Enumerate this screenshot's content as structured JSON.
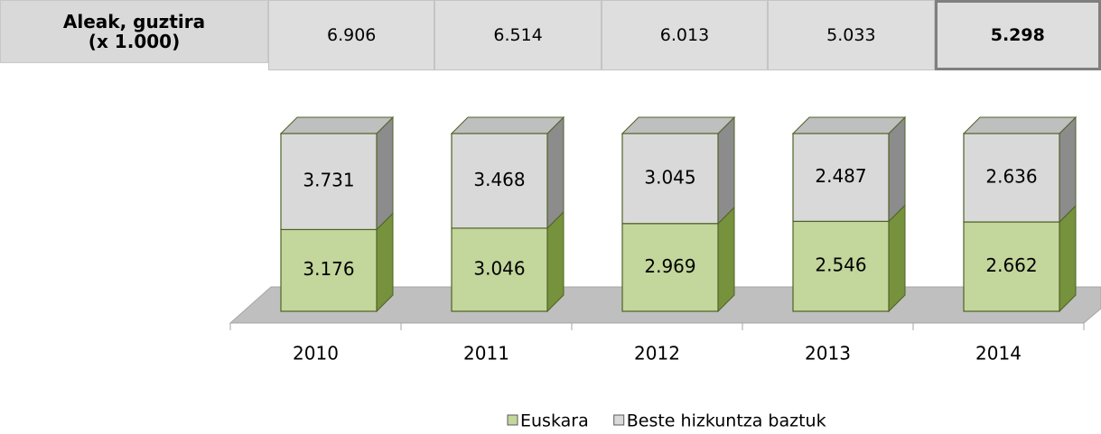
{
  "table": {
    "header": [
      "Aleak, guztira",
      "(x 1.000)"
    ],
    "values": [
      6906,
      6514,
      6013,
      5033,
      5298
    ],
    "value_labels": [
      "6.906",
      "6.514",
      "6.013",
      "5.033",
      "5.298"
    ]
  },
  "chart_data": {
    "type": "bar",
    "stacked": true,
    "percent": true,
    "categories": [
      "2010",
      "2011",
      "2012",
      "2013",
      "2014"
    ],
    "series": [
      {
        "name": "Euskara",
        "color": "#c3d69b",
        "values": [
          3176,
          3046,
          2969,
          2546,
          2662
        ],
        "value_labels": [
          "3.176",
          "3.046",
          "2.969",
          "2.546",
          "2.662"
        ]
      },
      {
        "name": "Beste hizkuntza baztuk",
        "color": "#d9d9d9",
        "values": [
          3731,
          3468,
          3045,
          2487,
          2636
        ],
        "value_labels": [
          "3.731",
          "3.468",
          "3.045",
          "2.487",
          "2.636"
        ]
      }
    ],
    "legend": "bottom"
  }
}
